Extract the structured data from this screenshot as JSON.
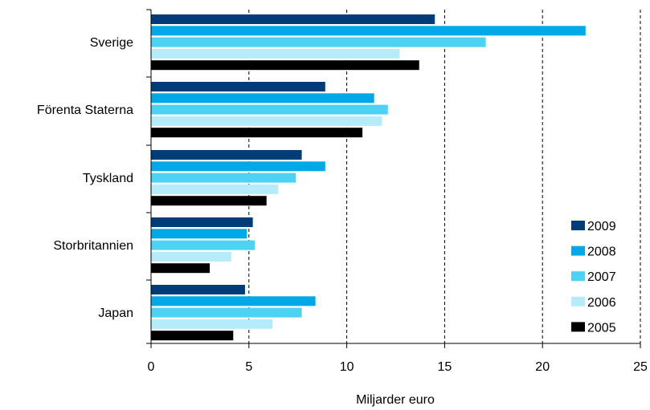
{
  "chart_data": {
    "type": "bar",
    "orientation": "horizontal",
    "xlabel": "Miljarder euro",
    "xlim": [
      0,
      25
    ],
    "xticks": [
      0,
      5,
      10,
      15,
      20,
      25
    ],
    "grid": "vertical dashed",
    "legend_position": "bottom-right",
    "categories": [
      "Sverige",
      "Förenta Staterna",
      "Tyskland",
      "Storbritannien",
      "Japan"
    ],
    "series": [
      {
        "name": "2009",
        "color": "#003C78",
        "values": [
          14.5,
          8.9,
          7.7,
          5.2,
          4.8
        ]
      },
      {
        "name": "2008",
        "color": "#00A8E8",
        "values": [
          22.2,
          11.4,
          8.9,
          4.9,
          8.4
        ]
      },
      {
        "name": "2007",
        "color": "#4DD2F4",
        "values": [
          17.1,
          12.1,
          7.4,
          5.3,
          7.7
        ]
      },
      {
        "name": "2006",
        "color": "#B6ECFA",
        "values": [
          12.7,
          11.8,
          6.5,
          4.1,
          6.2
        ]
      },
      {
        "name": "2005",
        "color": "#000000",
        "values": [
          13.7,
          10.8,
          5.9,
          3.0,
          4.2
        ]
      }
    ]
  }
}
